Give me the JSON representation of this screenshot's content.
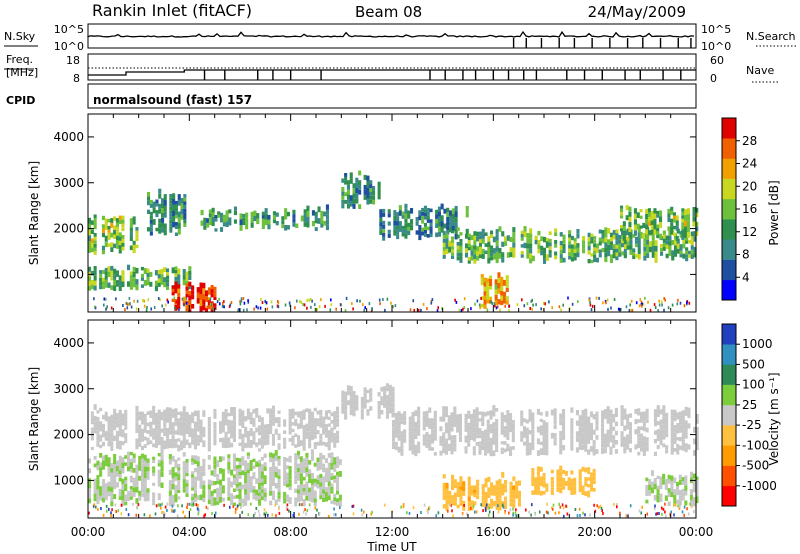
{
  "header": {
    "station": "Rankin Inlet (fitACF)",
    "beam": "Beam 08",
    "date": "24/May/2009"
  },
  "strips": {
    "nsky": {
      "label": "N.Sky",
      "ticks": [
        "10^5",
        "10^0"
      ]
    },
    "nsearch": {
      "label": "N.Search",
      "ticks": [
        "10^5",
        "10^0"
      ]
    },
    "freq": {
      "label_line1": "Freq.",
      "label_line2": "[MHz]",
      "ticks": [
        "18",
        "8"
      ]
    },
    "nave": {
      "label": "Nave",
      "ticks": [
        "60",
        "0"
      ]
    },
    "cpid": {
      "label": "CPID",
      "value": "normalsound (fast) 157"
    }
  },
  "panels": [
    {
      "ylabel": "Slant Range [km]",
      "color_label": "Power [dB]",
      "colorbar_ticks": [
        "28",
        "24",
        "20",
        "16",
        "12",
        "8",
        "4"
      ]
    },
    {
      "ylabel": "Slant Range [km]",
      "color_label": "Velocity [m s⁻¹]",
      "colorbar_ticks": [
        "1000",
        "500",
        "100",
        "25",
        "-25",
        "-100",
        "-500",
        "-1000"
      ]
    }
  ],
  "colors": {
    "power": [
      "#0000ff",
      "#1f4fa0",
      "#3a8a8a",
      "#2f8f4f",
      "#6cc03c",
      "#c8d820",
      "#f0a000",
      "#f06000",
      "#e00000"
    ],
    "velocity": [
      "#ff0000",
      "#ff5000",
      "#ff9b00",
      "#ffc040",
      "#c8c8c8",
      "#7ccd3c",
      "#2e8b57",
      "#3090c0",
      "#2040c0"
    ]
  },
  "chart_data": [
    {
      "type": "heatmap",
      "variable": "power",
      "xlabel": "Time UT",
      "x_ticks": [
        "00:00",
        "04:00",
        "08:00",
        "12:00",
        "16:00",
        "20:00",
        "00:00"
      ],
      "y_ticks": [
        "1000",
        "2000",
        "3000",
        "4000"
      ],
      "xlim": [
        0,
        24
      ],
      "ylim": [
        180,
        4500
      ],
      "color_range": [
        0,
        32
      ],
      "bands": [
        {
          "t0": 0.0,
          "t1": 2.0,
          "r0": 1500,
          "r1": 2200,
          "value": 16
        },
        {
          "t0": 2.0,
          "t1": 3.8,
          "r0": 1900,
          "r1": 2700,
          "value": 10
        },
        {
          "t0": 4.0,
          "t1": 9.5,
          "r0": 2000,
          "r1": 2350,
          "value": 12
        },
        {
          "t0": 0.0,
          "t1": 4.0,
          "r0": 700,
          "r1": 1100,
          "value": 14
        },
        {
          "t0": 3.3,
          "t1": 5.0,
          "r0": 180,
          "r1": 700,
          "value": 30
        },
        {
          "t0": 10.0,
          "t1": 11.5,
          "r0": 2500,
          "r1": 3100,
          "value": 10
        },
        {
          "t0": 11.5,
          "t1": 15.0,
          "r0": 1800,
          "r1": 2400,
          "value": 10
        },
        {
          "t0": 14.0,
          "t1": 24.0,
          "r0": 1300,
          "r1": 1900,
          "value": 14
        },
        {
          "t0": 21.0,
          "t1": 24.0,
          "r0": 1800,
          "r1": 2400,
          "value": 16
        },
        {
          "t0": 15.5,
          "t1": 16.5,
          "r0": 300,
          "r1": 900,
          "value": 22
        }
      ]
    },
    {
      "type": "heatmap",
      "variable": "velocity",
      "xlabel": "Time UT",
      "x_ticks": [
        "00:00",
        "04:00",
        "08:00",
        "12:00",
        "16:00",
        "20:00",
        "00:00"
      ],
      "y_ticks": [
        "1000",
        "2000",
        "3000",
        "4000"
      ],
      "xlim": [
        0,
        24
      ],
      "ylim": [
        180,
        4500
      ],
      "color_range": [
        -1000,
        1000
      ],
      "bands": [
        {
          "t0": 0.0,
          "t1": 10.0,
          "r0": 1700,
          "r1": 2500,
          "value": 0
        },
        {
          "t0": 10.0,
          "t1": 12.0,
          "r0": 2400,
          "r1": 3000,
          "value": 0
        },
        {
          "t0": 12.0,
          "t1": 24.0,
          "r0": 1600,
          "r1": 2500,
          "value": 0
        },
        {
          "t0": 0.0,
          "t1": 10.0,
          "r0": 500,
          "r1": 1500,
          "value": 100
        },
        {
          "t0": 14.0,
          "t1": 17.0,
          "r0": 400,
          "r1": 1000,
          "value": -300
        },
        {
          "t0": 17.5,
          "t1": 20.0,
          "r0": 700,
          "r1": 1200,
          "value": -200
        },
        {
          "t0": 22.0,
          "t1": 24.0,
          "r0": 500,
          "r1": 1100,
          "value": 100
        }
      ]
    }
  ]
}
